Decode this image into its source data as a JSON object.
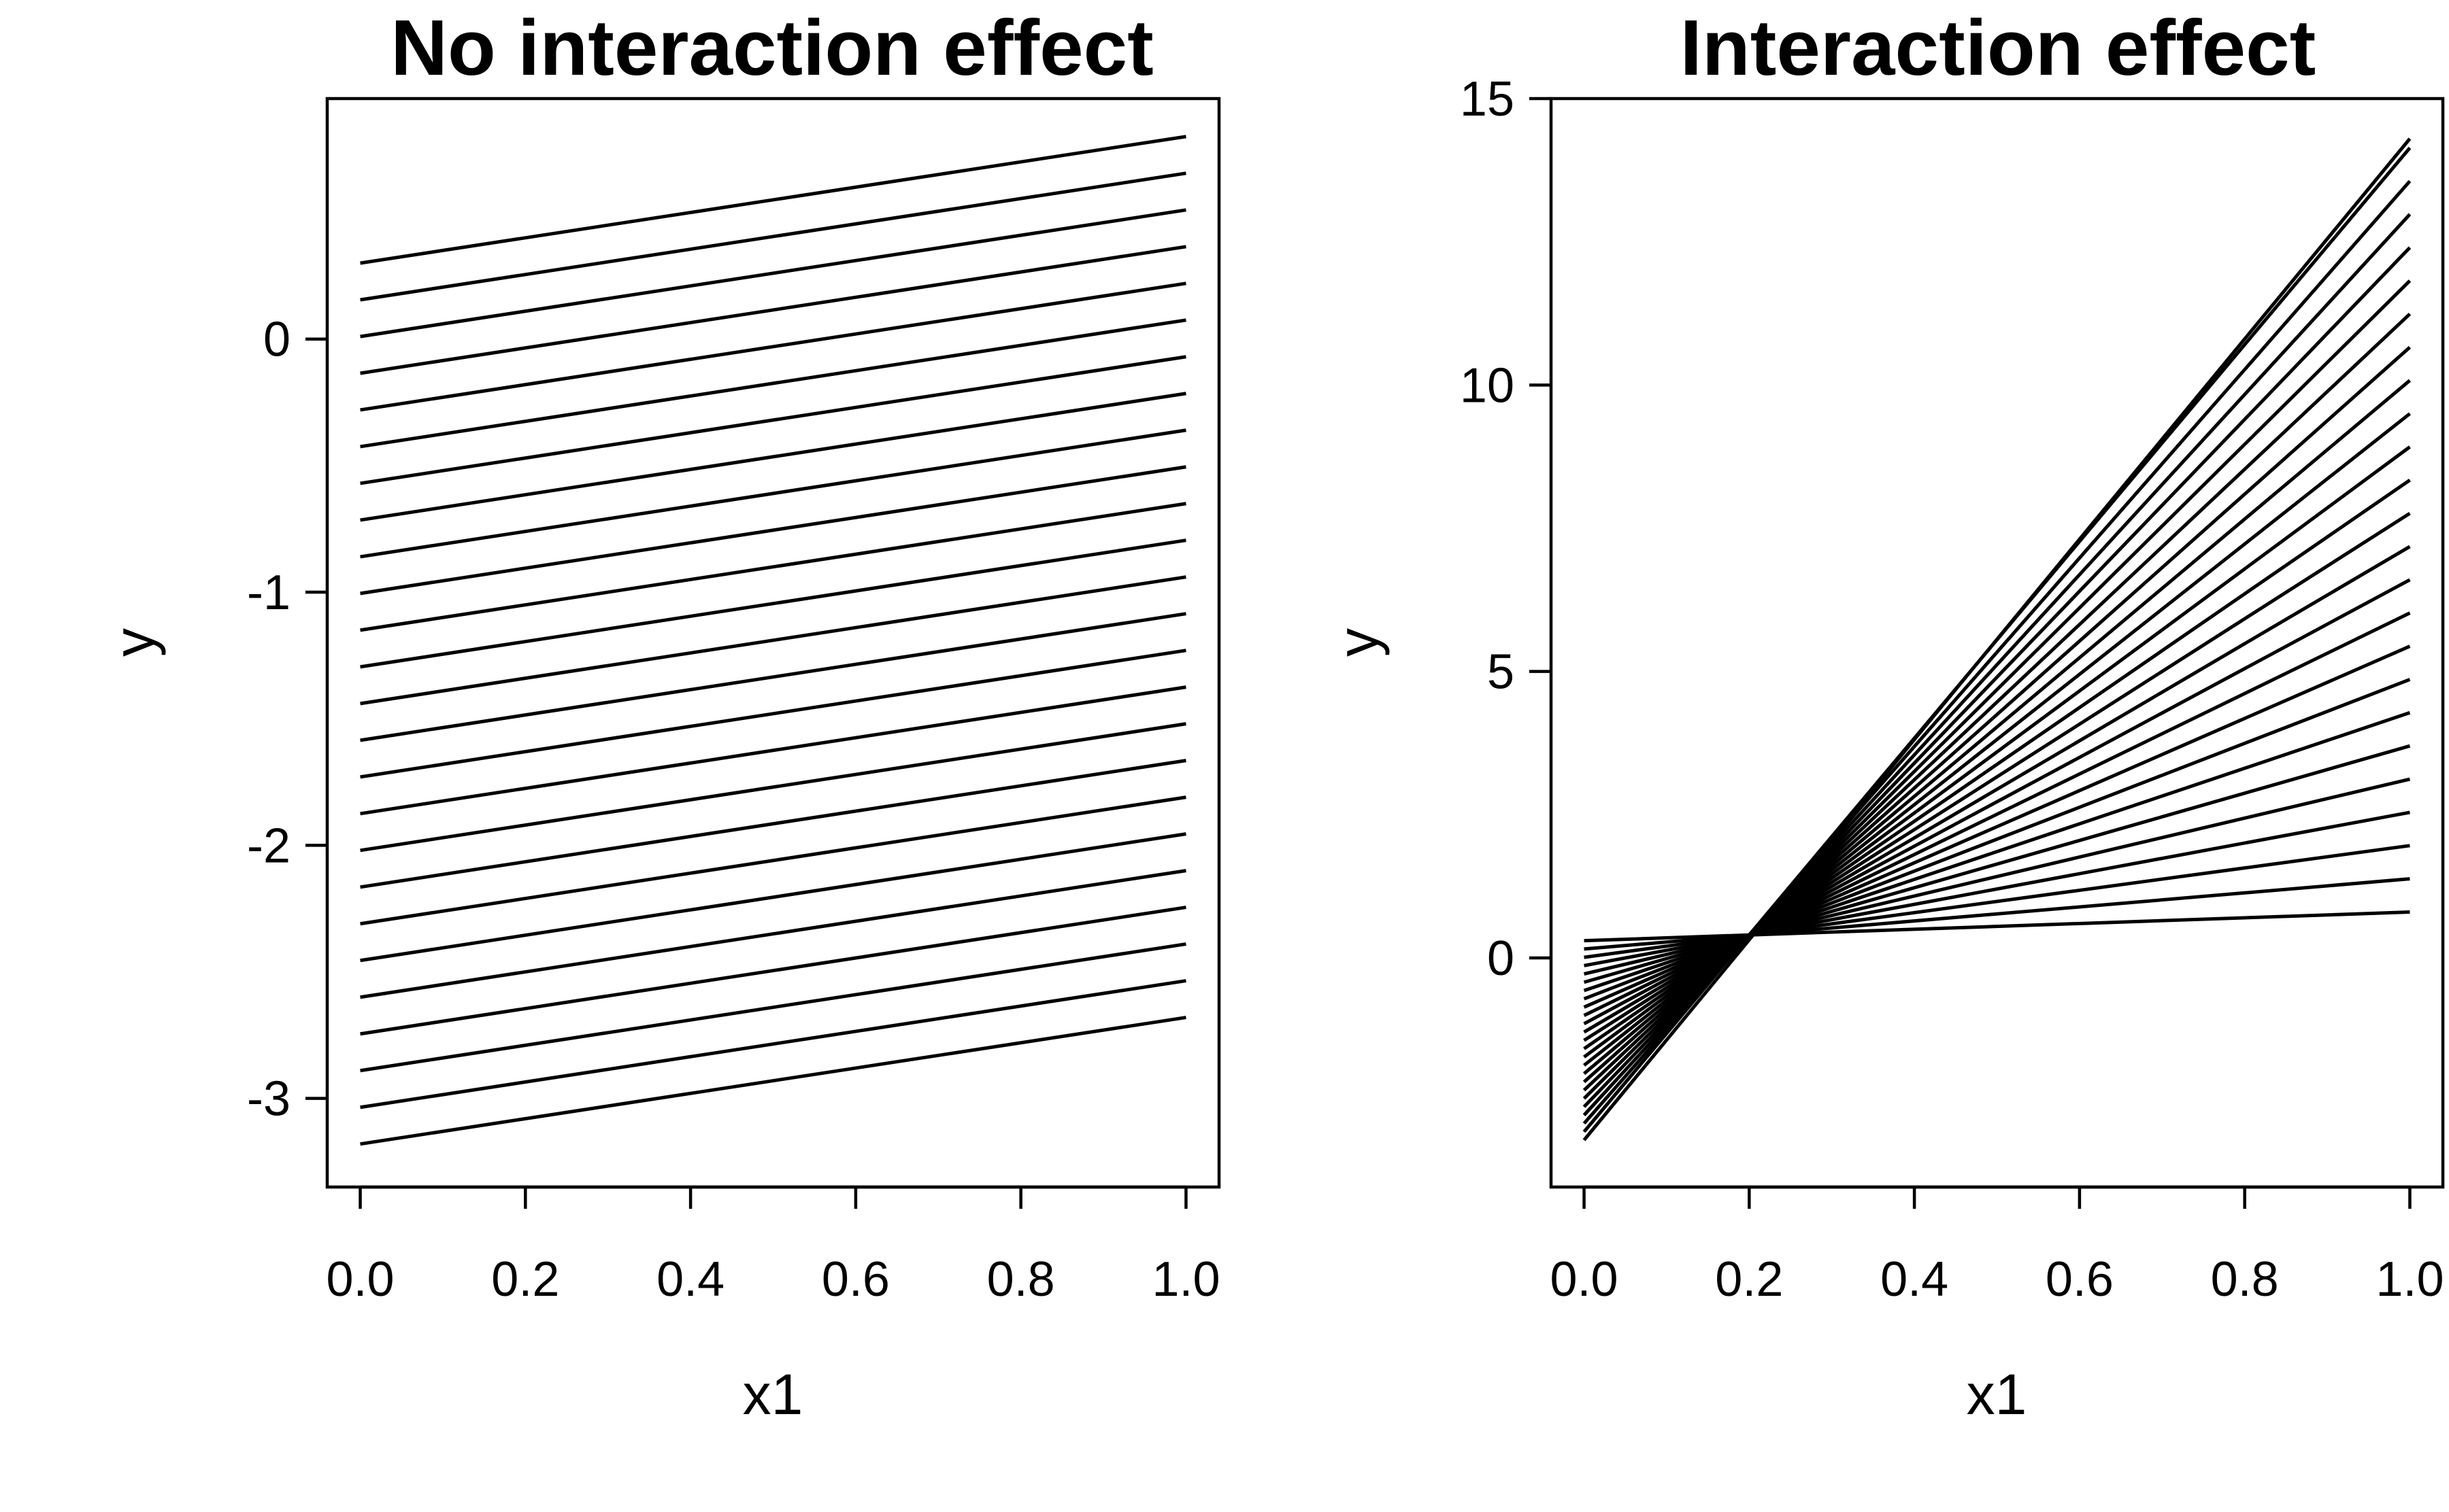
{
  "chart_data": [
    {
      "type": "line",
      "title": "No interaction effect",
      "xlabel": "x1",
      "ylabel": "y",
      "x": [
        0.0,
        1.0
      ],
      "xlim": [
        -0.04,
        1.04
      ],
      "ylim": [
        -3.35,
        0.95
      ],
      "x_ticks": [
        0.0,
        0.2,
        0.4,
        0.6,
        0.8,
        1.0
      ],
      "x_tick_labels": [
        "0.0",
        "0.2",
        "0.4",
        "0.6",
        "0.8",
        "1.0"
      ],
      "y_ticks": [
        -3,
        -2,
        -1,
        0
      ],
      "y_tick_labels": [
        "-3",
        "-2",
        "-1",
        "0"
      ],
      "grid": false,
      "color": "#000000",
      "series": [
        {
          "values": [
            0.3,
            0.8
          ]
        },
        {
          "values": [
            0.155,
            0.655
          ]
        },
        {
          "values": [
            0.01,
            0.51
          ]
        },
        {
          "values": [
            -0.135,
            0.365
          ]
        },
        {
          "values": [
            -0.28,
            0.22
          ]
        },
        {
          "values": [
            -0.425,
            0.075
          ]
        },
        {
          "values": [
            -0.57,
            -0.07
          ]
        },
        {
          "values": [
            -0.715,
            -0.215
          ]
        },
        {
          "values": [
            -0.86,
            -0.36
          ]
        },
        {
          "values": [
            -1.005,
            -0.505
          ]
        },
        {
          "values": [
            -1.15,
            -0.65
          ]
        },
        {
          "values": [
            -1.295,
            -0.795
          ]
        },
        {
          "values": [
            -1.44,
            -0.94
          ]
        },
        {
          "values": [
            -1.585,
            -1.085
          ]
        },
        {
          "values": [
            -1.73,
            -1.23
          ]
        },
        {
          "values": [
            -1.875,
            -1.375
          ]
        },
        {
          "values": [
            -2.02,
            -1.52
          ]
        },
        {
          "values": [
            -2.165,
            -1.665
          ]
        },
        {
          "values": [
            -2.31,
            -1.81
          ]
        },
        {
          "values": [
            -2.455,
            -1.955
          ]
        },
        {
          "values": [
            -2.6,
            -2.1
          ]
        },
        {
          "values": [
            -2.745,
            -2.245
          ]
        },
        {
          "values": [
            -2.89,
            -2.39
          ]
        },
        {
          "values": [
            -3.035,
            -2.535
          ]
        },
        {
          "values": [
            -3.18,
            -2.68
          ]
        }
      ]
    },
    {
      "type": "line",
      "title": "Interaction effect",
      "xlabel": "x1",
      "ylabel": "y",
      "x": [
        0.0,
        1.0
      ],
      "xlim": [
        -0.04,
        1.04
      ],
      "ylim": [
        -4.0,
        15.0
      ],
      "x_ticks": [
        0.0,
        0.2,
        0.4,
        0.6,
        0.8,
        1.0
      ],
      "x_tick_labels": [
        "0.0",
        "0.2",
        "0.4",
        "0.6",
        "0.8",
        "1.0"
      ],
      "y_ticks": [
        0,
        5,
        10,
        15
      ],
      "y_tick_labels": [
        "0",
        "5",
        "10",
        "15"
      ],
      "grid": false,
      "color": "#000000",
      "series": [
        {
          "values": [
            0.3,
            0.8
          ]
        },
        {
          "values": [
            0.155,
            1.38
          ]
        },
        {
          "values": [
            0.01,
            1.96
          ]
        },
        {
          "values": [
            -0.135,
            2.54
          ]
        },
        {
          "values": [
            -0.28,
            3.12
          ]
        },
        {
          "values": [
            -0.425,
            3.7
          ]
        },
        {
          "values": [
            -0.57,
            4.28
          ]
        },
        {
          "values": [
            -0.715,
            4.86
          ]
        },
        {
          "values": [
            -0.86,
            5.44
          ]
        },
        {
          "values": [
            -1.005,
            6.02
          ]
        },
        {
          "values": [
            -1.15,
            6.6
          ]
        },
        {
          "values": [
            -1.295,
            7.18
          ]
        },
        {
          "values": [
            -1.44,
            7.76
          ]
        },
        {
          "values": [
            -1.585,
            8.34
          ]
        },
        {
          "values": [
            -1.73,
            8.92
          ]
        },
        {
          "values": [
            -1.875,
            9.5
          ]
        },
        {
          "values": [
            -2.02,
            10.08
          ]
        },
        {
          "values": [
            -2.165,
            10.66
          ]
        },
        {
          "values": [
            -2.31,
            11.24
          ]
        },
        {
          "values": [
            -2.455,
            11.82
          ]
        },
        {
          "values": [
            -2.6,
            12.4
          ]
        },
        {
          "values": [
            -2.745,
            12.98
          ]
        },
        {
          "values": [
            -2.89,
            13.56
          ]
        },
        {
          "values": [
            -3.035,
            14.14
          ]
        },
        {
          "values": [
            -3.18,
            14.3
          ]
        }
      ]
    }
  ]
}
